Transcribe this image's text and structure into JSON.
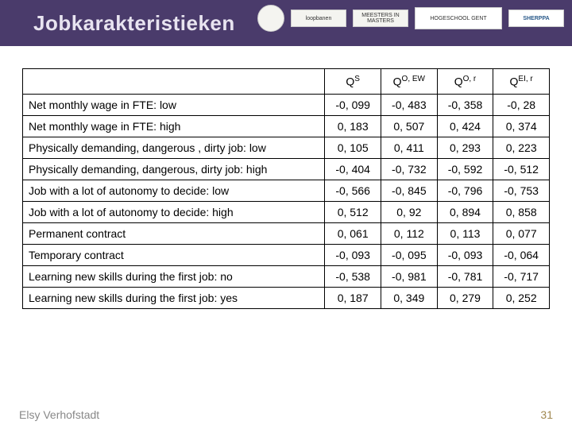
{
  "header": {
    "title": "Jobkarakteristieken",
    "background_color": "#4a3b6b",
    "title_color": "#e8e4f0"
  },
  "logos": [
    {
      "name": "green-seal",
      "shape": "round"
    },
    {
      "name": "loopbanen",
      "shape": "rect",
      "text": "loopbanen"
    },
    {
      "name": "meesters",
      "shape": "rect",
      "text": "MEESTERS IN MASTERS"
    },
    {
      "name": "hogeschool-gent",
      "shape": "big",
      "text": "HOGESCHOOL GENT"
    },
    {
      "name": "sherppa",
      "shape": "sherppa",
      "text": "SHERPPA"
    }
  ],
  "table": {
    "columns": [
      {
        "base": "Q",
        "sup": "S"
      },
      {
        "base": "Q",
        "sup": "O, EW"
      },
      {
        "base": "Q",
        "sup": "O, r"
      },
      {
        "base": "Q",
        "sup": "EI, r"
      }
    ],
    "rows": [
      {
        "label": "Net monthly wage in FTE: low",
        "vals": [
          "-0, 099",
          "-0, 483",
          "-0, 358",
          "-0, 28"
        ]
      },
      {
        "label": "Net monthly wage in FTE: high",
        "vals": [
          "0, 183",
          "0, 507",
          "0, 424",
          "0, 374"
        ]
      },
      {
        "label": "Physically demanding, dangerous , dirty job: low",
        "vals": [
          "0, 105",
          "0, 411",
          "0, 293",
          "0, 223"
        ]
      },
      {
        "label": "Physically demanding, dangerous, dirty job: high",
        "vals": [
          "-0, 404",
          "-0, 732",
          "-0, 592",
          "-0, 512"
        ]
      },
      {
        "label": "Job with a lot of autonomy to decide: low",
        "vals": [
          "-0, 566",
          "-0, 845",
          "-0, 796",
          "-0, 753"
        ]
      },
      {
        "label": "Job with a lot of autonomy to decide: high",
        "vals": [
          "0, 512",
          "0, 92",
          "0, 894",
          "0, 858"
        ]
      },
      {
        "label": "Permanent contract",
        "vals": [
          "0, 061",
          "0, 112",
          "0, 113",
          "0, 077"
        ]
      },
      {
        "label": "Temporary contract",
        "vals": [
          "-0, 093",
          "-0, 095",
          "-0, 093",
          "-0, 064"
        ]
      },
      {
        "label": "Learning new skills during the first job: no",
        "vals": [
          "-0, 538",
          "-0, 981",
          "-0, 781",
          "-0, 717"
        ]
      },
      {
        "label": "Learning new skills during the first job: yes",
        "vals": [
          "0, 187",
          "0, 349",
          "0, 279",
          "0, 252"
        ]
      }
    ]
  },
  "footer": {
    "author": "Elsy Verhofstadt",
    "page": "31"
  }
}
